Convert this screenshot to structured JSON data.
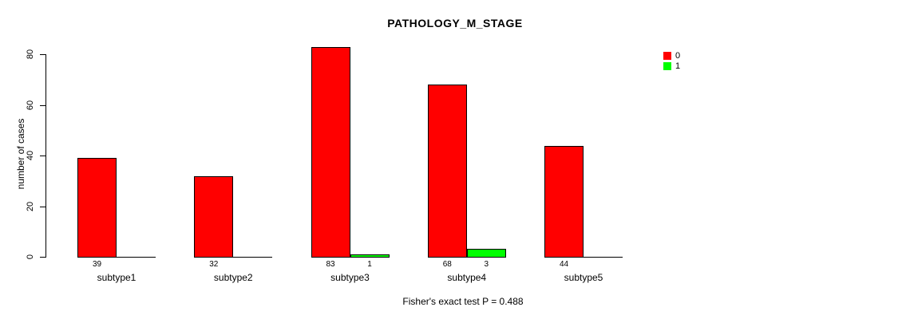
{
  "chart_data": {
    "type": "bar",
    "title": "PATHOLOGY_M_STAGE",
    "ylabel": "number of cases",
    "xlabel": "",
    "categories": [
      "subtype1",
      "subtype2",
      "subtype3",
      "subtype4",
      "subtype5"
    ],
    "series": [
      {
        "name": "0",
        "color": "#FF0000",
        "values": [
          39,
          32,
          83,
          68,
          44
        ]
      },
      {
        "name": "1",
        "color": "#00FF00",
        "values": [
          0,
          0,
          1,
          3,
          0
        ]
      }
    ],
    "yticks": [
      0,
      20,
      40,
      60,
      80
    ],
    "ylim": [
      0,
      83
    ],
    "grid": false,
    "legend_position": "top-right",
    "annotation": "Fisher's exact test P = 0.488"
  },
  "colors": {
    "axis": "#000000",
    "background": "#FFFFFF",
    "series0": "#FF0000",
    "series1": "#00FF00"
  }
}
